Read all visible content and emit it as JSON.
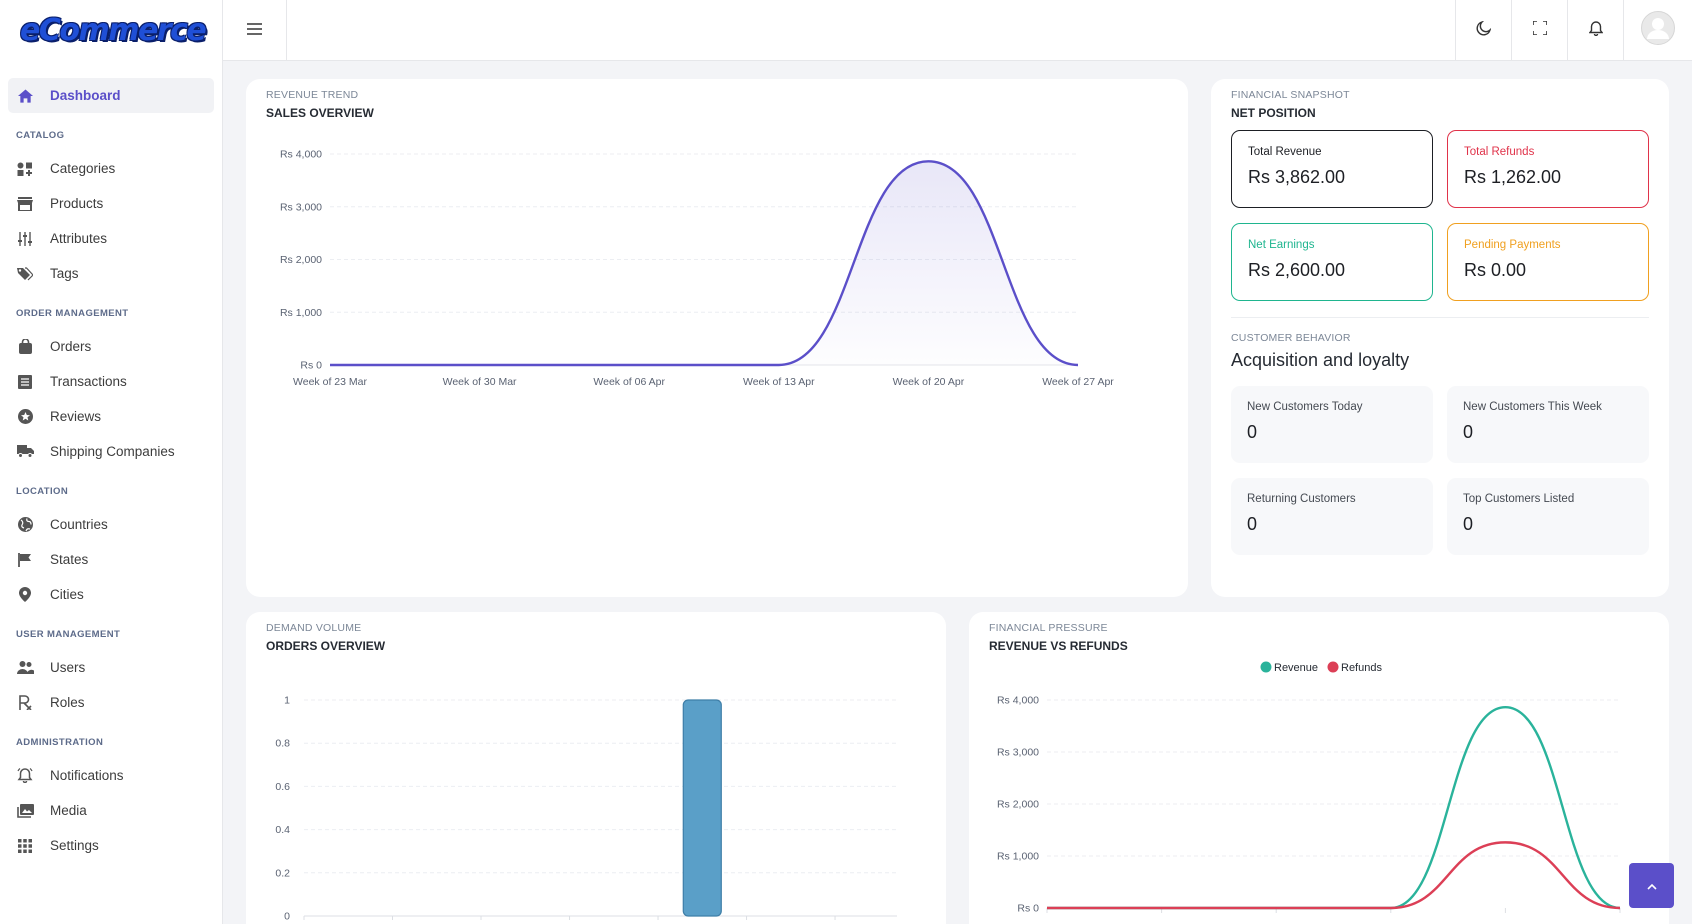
{
  "app": {
    "logo_text": "eCommerce"
  },
  "sidebar": {
    "dashboard": {
      "label": "Dashboard",
      "icon": "home-icon"
    },
    "sections": {
      "catalog": {
        "title": "CATALOG",
        "items": [
          {
            "label": "Categories",
            "icon": "categories-icon"
          },
          {
            "label": "Products",
            "icon": "store-icon"
          },
          {
            "label": "Attributes",
            "icon": "sliders-icon"
          },
          {
            "label": "Tags",
            "icon": "tags-icon"
          }
        ]
      },
      "orders": {
        "title": "ORDER MANAGEMENT",
        "items": [
          {
            "label": "Orders",
            "icon": "shopping-bag-icon"
          },
          {
            "label": "Transactions",
            "icon": "list-icon"
          },
          {
            "label": "Reviews",
            "icon": "star-circle-icon"
          },
          {
            "label": "Shipping Companies",
            "icon": "truck-icon"
          }
        ]
      },
      "location": {
        "title": "LOCATION",
        "items": [
          {
            "label": "Countries",
            "icon": "globe-icon"
          },
          {
            "label": "States",
            "icon": "flag-icon"
          },
          {
            "label": "Cities",
            "icon": "map-pin-icon"
          }
        ]
      },
      "users": {
        "title": "USER MANAGEMENT",
        "items": [
          {
            "label": "Users",
            "icon": "users-icon"
          },
          {
            "label": "Roles",
            "icon": "roles-icon"
          }
        ]
      },
      "admin": {
        "title": "ADMINISTRATION",
        "items": [
          {
            "label": "Notifications",
            "icon": "bell-icon"
          },
          {
            "label": "Media",
            "icon": "images-icon"
          },
          {
            "label": "Settings",
            "icon": "grid-icon"
          }
        ]
      }
    }
  },
  "sales_card": {
    "eyebrow": "REVENUE TREND",
    "title": "SALES OVERVIEW"
  },
  "snapshot": {
    "eyebrow": "FINANCIAL SNAPSHOT",
    "title": "NET POSITION",
    "stats": {
      "total_revenue": {
        "label": "Total Revenue",
        "value": "Rs 3,862.00",
        "color": "#1d1f24"
      },
      "total_refunds": {
        "label": "Total Refunds",
        "value": "Rs 1,262.00",
        "color": "#e0334a"
      },
      "net_earnings": {
        "label": "Net Earnings",
        "value": "Rs 2,600.00",
        "color": "#1fb58f"
      },
      "pending_payments": {
        "label": "Pending Payments",
        "value": "Rs 0.00",
        "color": "#f0a020"
      }
    }
  },
  "customers": {
    "eyebrow": "CUSTOMER BEHAVIOR",
    "title": "Acquisition and loyalty",
    "new_today": {
      "label": "New Customers Today",
      "value": "0"
    },
    "new_week": {
      "label": "New Customers This Week",
      "value": "0"
    },
    "returning": {
      "label": "Returning Customers",
      "value": "0"
    },
    "top_listed": {
      "label": "Top Customers Listed",
      "value": "0"
    }
  },
  "orders_card": {
    "eyebrow": "DEMAND VOLUME",
    "title": "ORDERS OVERVIEW"
  },
  "refunds_card": {
    "eyebrow": "FINANCIAL PRESSURE",
    "title": "REVENUE VS REFUNDS"
  },
  "chart_data": [
    {
      "type": "area",
      "categories": [
        "Week of 23 Mar",
        "Week of 30 Mar",
        "Week of 06 Apr",
        "Week of 13 Apr",
        "Week of 20 Apr",
        "Week of 27 Apr"
      ],
      "series": [
        {
          "values": [
            0,
            0,
            0,
            0,
            3862,
            0
          ],
          "color": "#5b4fc9"
        }
      ],
      "y_ticks": [
        "Rs 0",
        "Rs 1,000",
        "Rs 2,000",
        "Rs 3,000",
        "Rs 4,000"
      ],
      "ylim": [
        0,
        4000
      ],
      "grid": true
    },
    {
      "type": "bar",
      "categories": [
        "",
        "",
        "",
        "",
        "",
        ""
      ],
      "values": [
        0,
        0,
        0,
        0,
        1,
        0
      ],
      "y_ticks": [
        "0",
        "0.2",
        "0.4",
        "0.6",
        "0.8",
        "1"
      ],
      "ylim": [
        0,
        1
      ],
      "color": "#5a9fc8",
      "grid": true
    },
    {
      "type": "line",
      "categories": [
        "",
        "",
        "",
        "",
        "",
        ""
      ],
      "series": [
        {
          "name": "Revenue",
          "values": [
            0,
            0,
            0,
            0,
            3862,
            0
          ],
          "color": "#2ab39b"
        },
        {
          "name": "Refunds",
          "values": [
            0,
            0,
            0,
            0,
            1262,
            0
          ],
          "color": "#dc3f56"
        }
      ],
      "y_ticks": [
        "Rs 0",
        "Rs 1,000",
        "Rs 2,000",
        "Rs 3,000",
        "Rs 4,000"
      ],
      "ylim": [
        0,
        4000
      ],
      "legend": "top-center",
      "grid": true
    }
  ]
}
